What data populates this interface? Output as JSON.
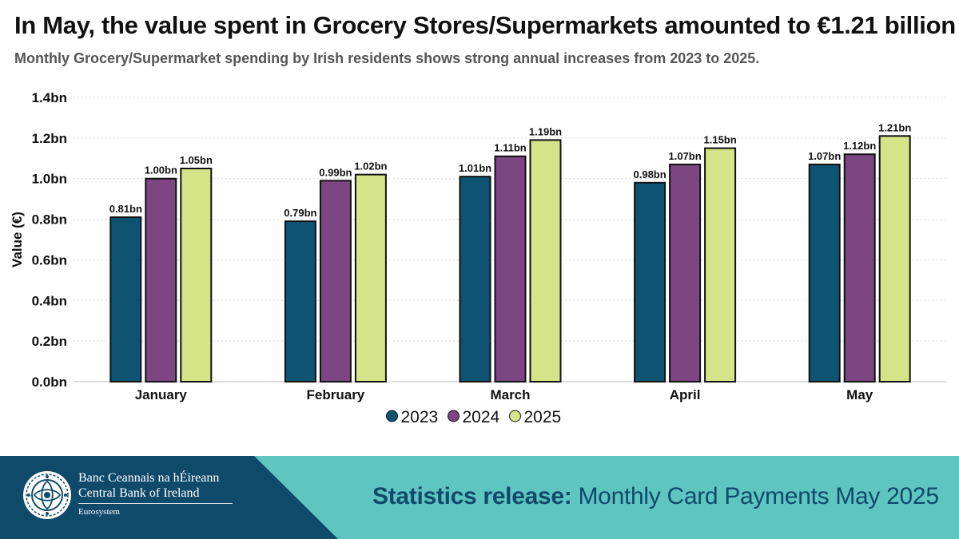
{
  "header": {
    "title": "In May, the value spent in Grocery Stores/Supermarkets amounted to €1.21 billion",
    "subtitle": "Monthly Grocery/Supermarket spending by Irish residents shows strong annual increases from 2023 to 2025."
  },
  "chart_data": {
    "type": "bar",
    "ylabel": "Value (€)",
    "xlabel": "",
    "ylim": [
      0,
      1.4
    ],
    "yticks": [
      0,
      0.2,
      0.4,
      0.6,
      0.8,
      1.0,
      1.2,
      1.4
    ],
    "ytick_labels": [
      "0.0bn",
      "0.2bn",
      "0.4bn",
      "0.6bn",
      "0.8bn",
      "1.0bn",
      "1.2bn",
      "1.4bn"
    ],
    "grid": true,
    "legend_position": "bottom",
    "categories": [
      "January",
      "February",
      "March",
      "April",
      "May"
    ],
    "series": [
      {
        "name": "2023",
        "color": "#0e5372",
        "values": [
          0.81,
          0.79,
          1.01,
          0.98,
          1.07
        ],
        "labels": [
          "0.81bn",
          "0.79bn",
          "1.01bn",
          "0.98bn",
          "1.07bn"
        ]
      },
      {
        "name": "2024",
        "color": "#7b4682",
        "values": [
          1.0,
          0.99,
          1.11,
          1.07,
          1.12
        ],
        "labels": [
          "1.00bn",
          "0.99bn",
          "1.11bn",
          "1.07bn",
          "1.12bn"
        ]
      },
      {
        "name": "2025",
        "color": "#d5e488",
        "values": [
          1.05,
          1.02,
          1.19,
          1.15,
          1.21
        ],
        "labels": [
          "1.05bn",
          "1.02bn",
          "1.19bn",
          "1.15bn",
          "1.21bn"
        ]
      }
    ]
  },
  "footer": {
    "bank_name_irish": "Banc Ceannais na hÉireann",
    "bank_name_english": "Central Bank of Ireland",
    "eurosystem": "Eurosystem",
    "release_lead": "Statistics release:",
    "release_text": " Monthly Card Payments May 2025",
    "colors": {
      "left_panel": "#104a6b",
      "right_panel": "#5ec5c1"
    }
  }
}
